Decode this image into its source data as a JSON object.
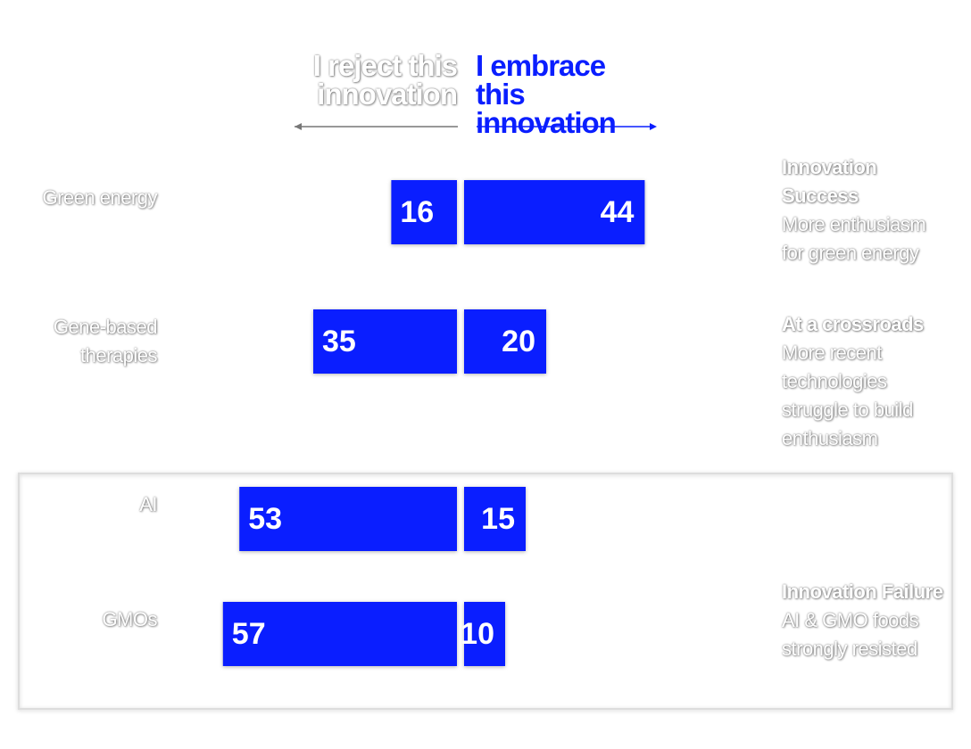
{
  "chart_data": {
    "type": "diverging-bar",
    "categories": [
      "Green energy",
      "Gene-based therapies",
      "AI",
      "GMOs"
    ],
    "series": [
      {
        "name": "I reject this innovation",
        "color": "#0a1eff",
        "values": [
          16,
          35,
          53,
          57
        ]
      },
      {
        "name": "I embrace this innovation",
        "color": "#0a1eff",
        "values": [
          44,
          20,
          15,
          10
        ]
      }
    ],
    "annotations": [
      {
        "title": "Innovation Success",
        "text": "More enthusiasm for green energy"
      },
      {
        "title": "At a crossroads",
        "text": "More recent technologies struggle to build enthusiasm"
      },
      {
        "title": "Innovation Failure",
        "text": "AI & GMO foods strongly resisted"
      }
    ]
  }
}
